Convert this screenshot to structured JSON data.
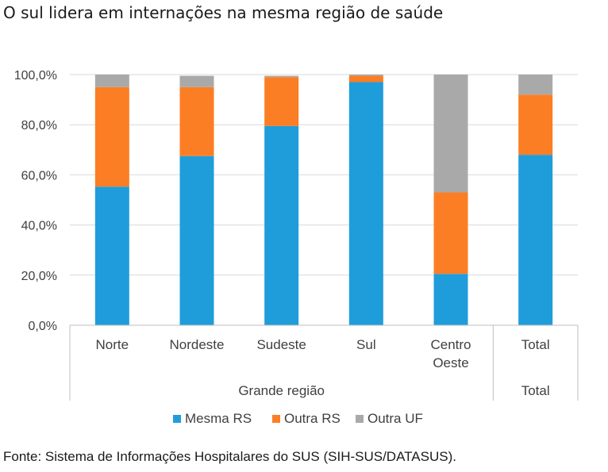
{
  "title": "O sul lidera em internações na mesma região de saúde",
  "source": "Fonte: Sistema de Informações Hospitalares do SUS (SIH-SUS/DATASUS).",
  "chart_data": {
    "type": "bar",
    "stacked": true,
    "categories": [
      "Norte",
      "Nordeste",
      "Sudeste",
      "Sul",
      "Centro Oeste",
      "Total"
    ],
    "category_lines": [
      [
        "Norte"
      ],
      [
        "Nordeste"
      ],
      [
        "Sudeste"
      ],
      [
        "Sul"
      ],
      [
        "Centro",
        "Oeste"
      ],
      [
        "Total"
      ]
    ],
    "groups": [
      {
        "label": "Grande região",
        "categories": [
          "Norte",
          "Nordeste",
          "Sudeste",
          "Sul",
          "Centro Oeste"
        ]
      },
      {
        "label": "Total",
        "categories": [
          "Total"
        ]
      }
    ],
    "series": [
      {
        "name": "Mesma RS",
        "color": "#1f9ddb",
        "values": [
          55.3,
          67.5,
          79.5,
          97.0,
          20.5,
          68.0
        ]
      },
      {
        "name": "Outra RS",
        "color": "#fb7e24",
        "values": [
          39.7,
          27.5,
          19.5,
          2.5,
          32.5,
          24.0
        ]
      },
      {
        "name": "Outra UF",
        "color": "#a9a9a9",
        "values": [
          5.0,
          4.5,
          0.5,
          0.5,
          47.0,
          8.0
        ]
      }
    ],
    "ylim": [
      0,
      100
    ],
    "yticks": [
      "0,0%",
      "20,0%",
      "40,0%",
      "60,0%",
      "80,0%",
      "100,0%"
    ],
    "grid": true,
    "legend": "bottom"
  }
}
